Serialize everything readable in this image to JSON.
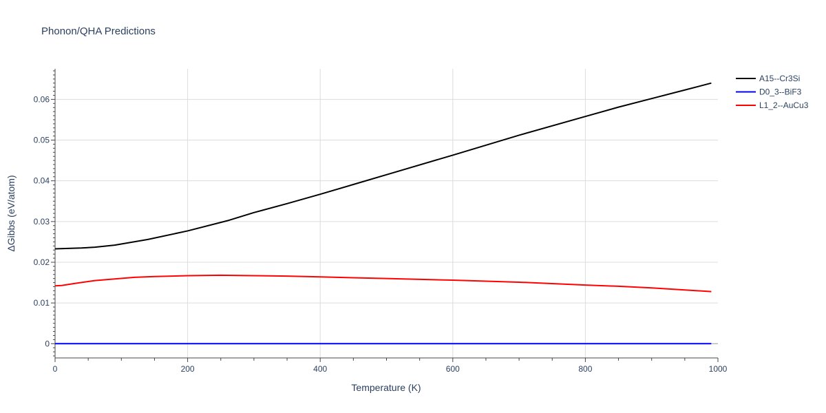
{
  "chart_data": {
    "type": "line",
    "title": "Phonon/QHA Predictions",
    "xlabel": "Temperature (K)",
    "ylabel": "ΔGibbs (eV/atom)",
    "xlim": [
      0,
      1000
    ],
    "ylim": [
      -0.0035,
      0.0675
    ],
    "x_ticks": [
      0,
      200,
      400,
      600,
      800,
      1000
    ],
    "x_tick_labels": [
      "0",
      "200",
      "400",
      "600",
      "800",
      "1000"
    ],
    "y_ticks": [
      0,
      0.01,
      0.02,
      0.03,
      0.04,
      0.05,
      0.06
    ],
    "y_tick_labels": [
      "0",
      "0.01",
      "0.02",
      "0.03",
      "0.04",
      "0.05",
      "0.06"
    ],
    "grid": true,
    "legend_position": "top-right",
    "series": [
      {
        "name": "A15--Cr3Si",
        "color": "#000000",
        "x": [
          0,
          20,
          40,
          60,
          90,
          140,
          200,
          260,
          300,
          350,
          400,
          450,
          500,
          600,
          700,
          800,
          850,
          900,
          950,
          990
        ],
        "y": [
          0.0233,
          0.0234,
          0.0235,
          0.0237,
          0.0242,
          0.0256,
          0.0277,
          0.0302,
          0.0322,
          0.0344,
          0.0367,
          0.0391,
          0.0415,
          0.0463,
          0.0512,
          0.0558,
          0.0581,
          0.0602,
          0.0623,
          0.064
        ]
      },
      {
        "name": "D0_3--BiF3",
        "color": "#0000ff",
        "x": [
          0,
          990
        ],
        "y": [
          0,
          0
        ]
      },
      {
        "name": "L1_2--AuCu3",
        "color": "#ff0000",
        "x": [
          0,
          10,
          30,
          60,
          90,
          120,
          150,
          200,
          250,
          300,
          350,
          400,
          500,
          600,
          700,
          800,
          850,
          900,
          950,
          990
        ],
        "y": [
          0.0142,
          0.0143,
          0.0148,
          0.0155,
          0.0159,
          0.0163,
          0.0165,
          0.0167,
          0.0168,
          0.0167,
          0.0166,
          0.0164,
          0.016,
          0.0156,
          0.0151,
          0.0144,
          0.0141,
          0.0137,
          0.0132,
          0.0128
        ]
      }
    ]
  }
}
